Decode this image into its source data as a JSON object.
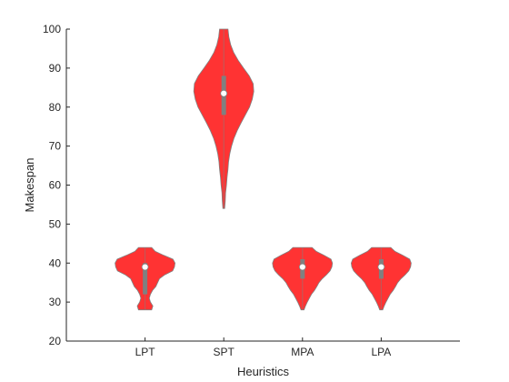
{
  "chart_data": {
    "type": "violin",
    "title": "",
    "xlabel": "Heuristics",
    "ylabel": "Makespan",
    "ylim": [
      20,
      100
    ],
    "yticks": [
      20,
      30,
      40,
      50,
      60,
      70,
      80,
      90,
      100
    ],
    "categories": [
      "LPT",
      "SPT",
      "MPA",
      "LPA"
    ],
    "grid": false,
    "colors": {
      "violin_fill": "#ff3333",
      "violin_edge": "#808080",
      "box": "#808080",
      "median": "#ffffff"
    },
    "violins": [
      {
        "category": "LPT",
        "min": 28,
        "max": 44,
        "median": 39,
        "q1": 32,
        "q3": 40,
        "profile": [
          [
            28,
            0.22
          ],
          [
            29,
            0.26
          ],
          [
            30,
            0.18
          ],
          [
            31,
            0.14
          ],
          [
            32,
            0.18
          ],
          [
            33,
            0.25
          ],
          [
            34,
            0.36
          ],
          [
            35,
            0.42
          ],
          [
            36,
            0.48
          ],
          [
            37,
            0.66
          ],
          [
            38,
            0.92
          ],
          [
            39,
            0.98
          ],
          [
            40,
            1.0
          ],
          [
            41,
            0.93
          ],
          [
            42,
            0.62
          ],
          [
            43,
            0.34
          ],
          [
            44,
            0.22
          ]
        ]
      },
      {
        "category": "SPT",
        "min": 54,
        "max": 100,
        "median": 83.5,
        "q1": 78,
        "q3": 88,
        "profile": [
          [
            54,
            0.03
          ],
          [
            56,
            0.05
          ],
          [
            58,
            0.06
          ],
          [
            60,
            0.09
          ],
          [
            62,
            0.11
          ],
          [
            64,
            0.14
          ],
          [
            66,
            0.16
          ],
          [
            68,
            0.2
          ],
          [
            70,
            0.26
          ],
          [
            72,
            0.34
          ],
          [
            74,
            0.45
          ],
          [
            76,
            0.58
          ],
          [
            78,
            0.72
          ],
          [
            80,
            0.86
          ],
          [
            82,
            0.95
          ],
          [
            84,
            1.0
          ],
          [
            86,
            0.98
          ],
          [
            88,
            0.85
          ],
          [
            90,
            0.66
          ],
          [
            92,
            0.48
          ],
          [
            94,
            0.33
          ],
          [
            96,
            0.23
          ],
          [
            98,
            0.17
          ],
          [
            100,
            0.14
          ]
        ]
      },
      {
        "category": "MPA",
        "min": 28,
        "max": 44,
        "median": 39,
        "q1": 36,
        "q3": 41,
        "profile": [
          [
            28,
            0.05
          ],
          [
            29,
            0.1
          ],
          [
            30,
            0.16
          ],
          [
            31,
            0.23
          ],
          [
            32,
            0.3
          ],
          [
            33,
            0.4
          ],
          [
            34,
            0.48
          ],
          [
            35,
            0.55
          ],
          [
            36,
            0.66
          ],
          [
            37,
            0.8
          ],
          [
            38,
            0.92
          ],
          [
            39,
            0.98
          ],
          [
            40,
            1.0
          ],
          [
            41,
            0.95
          ],
          [
            42,
            0.72
          ],
          [
            43,
            0.46
          ],
          [
            44,
            0.32
          ]
        ]
      },
      {
        "category": "LPA",
        "min": 28,
        "max": 44,
        "median": 39,
        "q1": 36,
        "q3": 41,
        "profile": [
          [
            28,
            0.05
          ],
          [
            29,
            0.1
          ],
          [
            30,
            0.16
          ],
          [
            31,
            0.23
          ],
          [
            32,
            0.3
          ],
          [
            33,
            0.4
          ],
          [
            34,
            0.48
          ],
          [
            35,
            0.55
          ],
          [
            36,
            0.66
          ],
          [
            37,
            0.8
          ],
          [
            38,
            0.92
          ],
          [
            39,
            0.98
          ],
          [
            40,
            1.0
          ],
          [
            41,
            0.95
          ],
          [
            42,
            0.72
          ],
          [
            43,
            0.46
          ],
          [
            44,
            0.32
          ]
        ]
      }
    ]
  }
}
